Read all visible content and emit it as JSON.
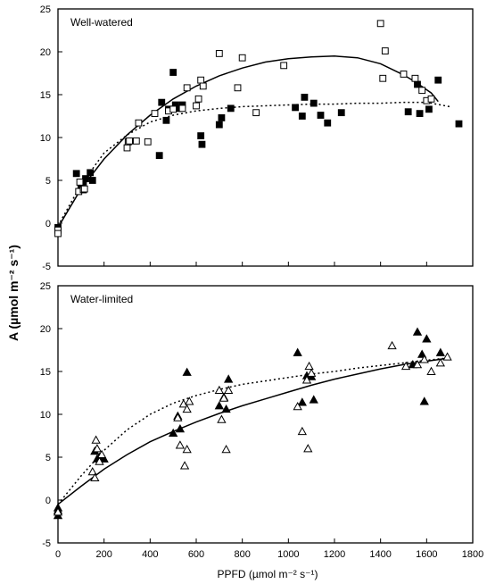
{
  "figure": {
    "ylabel": "A (µmol m⁻² s⁻¹)",
    "xlabel": "PPFD (µmol m⁻² s⁻¹)"
  },
  "chart_data": [
    {
      "type": "scatter",
      "title": "Well-watered",
      "xlim": [
        0,
        1800
      ],
      "ylim": [
        -5,
        25
      ],
      "x_ticks": [
        0,
        200,
        400,
        600,
        800,
        1000,
        1200,
        1400,
        1600,
        1800
      ],
      "x_tick_labels_shown": false,
      "y_ticks": [
        -5,
        0,
        5,
        10,
        15,
        20,
        25
      ],
      "grid": false,
      "series": [
        {
          "marker": "filled-square",
          "points": [
            [
              0,
              -0.5
            ],
            [
              80,
              5.8
            ],
            [
              100,
              4.2
            ],
            [
              110,
              4.8
            ],
            [
              120,
              5.2
            ],
            [
              140,
              5.9
            ],
            [
              150,
              5.0
            ],
            [
              440,
              7.9
            ],
            [
              450,
              14.1
            ],
            [
              470,
              12.0
            ],
            [
              480,
              13.3
            ],
            [
              500,
              17.6
            ],
            [
              510,
              13.8
            ],
            [
              520,
              13.4
            ],
            [
              540,
              13.8
            ],
            [
              620,
              10.2
            ],
            [
              625,
              9.2
            ],
            [
              700,
              11.5
            ],
            [
              710,
              12.3
            ],
            [
              750,
              13.4
            ],
            [
              1030,
              13.5
            ],
            [
              1060,
              12.5
            ],
            [
              1070,
              14.7
            ],
            [
              1110,
              14.0
            ],
            [
              1140,
              12.6
            ],
            [
              1170,
              11.7
            ],
            [
              1230,
              12.9
            ],
            [
              1520,
              13.0
            ],
            [
              1560,
              16.2
            ],
            [
              1570,
              12.8
            ],
            [
              1610,
              13.3
            ],
            [
              1650,
              16.7
            ],
            [
              1740,
              11.6
            ]
          ]
        },
        {
          "marker": "open-square",
          "points": [
            [
              0,
              -0.8
            ],
            [
              0,
              -1.2
            ],
            [
              90,
              3.7
            ],
            [
              95,
              4.8
            ],
            [
              110,
              3.9
            ],
            [
              115,
              4.0
            ],
            [
              300,
              8.8
            ],
            [
              305,
              9.5
            ],
            [
              310,
              9.6
            ],
            [
              340,
              9.6
            ],
            [
              350,
              11.7
            ],
            [
              390,
              9.5
            ],
            [
              420,
              12.8
            ],
            [
              480,
              13.1
            ],
            [
              500,
              13.3
            ],
            [
              540,
              13.4
            ],
            [
              560,
              15.8
            ],
            [
              600,
              13.7
            ],
            [
              610,
              14.5
            ],
            [
              620,
              16.7
            ],
            [
              630,
              16.0
            ],
            [
              700,
              19.8
            ],
            [
              780,
              15.8
            ],
            [
              800,
              19.3
            ],
            [
              860,
              12.9
            ],
            [
              980,
              18.4
            ],
            [
              1400,
              23.3
            ],
            [
              1410,
              16.9
            ],
            [
              1420,
              20.1
            ],
            [
              1500,
              17.4
            ],
            [
              1550,
              16.9
            ],
            [
              1580,
              15.5
            ],
            [
              1600,
              14.3
            ],
            [
              1620,
              14.5
            ]
          ]
        },
        {
          "line": "solid",
          "points": [
            [
              0,
              -0.5
            ],
            [
              100,
              4.0
            ],
            [
              200,
              7.5
            ],
            [
              300,
              10.3
            ],
            [
              400,
              12.6
            ],
            [
              500,
              14.5
            ],
            [
              600,
              16.0
            ],
            [
              700,
              17.2
            ],
            [
              800,
              18.1
            ],
            [
              900,
              18.8
            ],
            [
              1000,
              19.2
            ],
            [
              1100,
              19.4
            ],
            [
              1200,
              19.5
            ],
            [
              1300,
              19.3
            ],
            [
              1400,
              18.6
            ],
            [
              1500,
              17.3
            ],
            [
              1550,
              16.5
            ],
            [
              1620,
              15.2
            ],
            [
              1650,
              14.2
            ]
          ]
        },
        {
          "line": "dotted",
          "points": [
            [
              0,
              -0.3
            ],
            [
              100,
              4.5
            ],
            [
              200,
              8.2
            ],
            [
              300,
              10.3
            ],
            [
              400,
              11.8
            ],
            [
              500,
              12.6
            ],
            [
              600,
              13.1
            ],
            [
              700,
              13.4
            ],
            [
              800,
              13.6
            ],
            [
              900,
              13.7
            ],
            [
              1000,
              13.8
            ],
            [
              1100,
              13.9
            ],
            [
              1200,
              13.9
            ],
            [
              1300,
              14.0
            ],
            [
              1400,
              14.0
            ],
            [
              1500,
              14.1
            ],
            [
              1600,
              14.1
            ],
            [
              1700,
              13.6
            ]
          ]
        }
      ]
    },
    {
      "type": "scatter",
      "title": "Water-limited",
      "xlim": [
        0,
        1800
      ],
      "ylim": [
        -5,
        25
      ],
      "x_ticks": [
        0,
        200,
        400,
        600,
        800,
        1000,
        1200,
        1400,
        1600,
        1800
      ],
      "x_tick_labels": [
        "0",
        "200",
        "400",
        "600",
        "800",
        "1000",
        "1200",
        "1400",
        "1600",
        "1800"
      ],
      "y_ticks": [
        -5,
        0,
        5,
        10,
        15,
        20,
        25
      ],
      "grid": false,
      "series": [
        {
          "marker": "filled-triangle",
          "points": [
            [
              0,
              -1.2
            ],
            [
              0,
              -1.8
            ],
            [
              0,
              -0.9
            ],
            [
              160,
              5.7
            ],
            [
              170,
              4.8
            ],
            [
              180,
              5.0
            ],
            [
              200,
              4.8
            ],
            [
              500,
              7.8
            ],
            [
              520,
              9.8
            ],
            [
              530,
              8.3
            ],
            [
              560,
              14.9
            ],
            [
              700,
              11.0
            ],
            [
              720,
              12.0
            ],
            [
              730,
              10.6
            ],
            [
              740,
              14.1
            ],
            [
              1040,
              17.2
            ],
            [
              1060,
              11.4
            ],
            [
              1080,
              14.5
            ],
            [
              1100,
              14.4
            ],
            [
              1110,
              11.7
            ],
            [
              1540,
              15.8
            ],
            [
              1560,
              19.6
            ],
            [
              1580,
              17.0
            ],
            [
              1590,
              11.5
            ],
            [
              1600,
              18.8
            ],
            [
              1660,
              17.2
            ]
          ]
        },
        {
          "marker": "open-triangle",
          "points": [
            [
              0,
              -1.4
            ],
            [
              150,
              3.3
            ],
            [
              160,
              2.6
            ],
            [
              165,
              7.0
            ],
            [
              170,
              6.0
            ],
            [
              180,
              4.5
            ],
            [
              190,
              5.3
            ],
            [
              520,
              9.6
            ],
            [
              530,
              6.4
            ],
            [
              545,
              11.2
            ],
            [
              550,
              4.0
            ],
            [
              560,
              10.6
            ],
            [
              560,
              5.9
            ],
            [
              570,
              11.5
            ],
            [
              700,
              12.8
            ],
            [
              710,
              9.4
            ],
            [
              720,
              11.9
            ],
            [
              730,
              5.9
            ],
            [
              740,
              12.8
            ],
            [
              1040,
              10.9
            ],
            [
              1060,
              8.0
            ],
            [
              1080,
              14.0
            ],
            [
              1085,
              6.0
            ],
            [
              1090,
              15.6
            ],
            [
              1100,
              14.8
            ],
            [
              1450,
              18.0
            ],
            [
              1510,
              15.6
            ],
            [
              1560,
              15.8
            ],
            [
              1590,
              16.4
            ],
            [
              1620,
              15.0
            ],
            [
              1660,
              16.0
            ],
            [
              1690,
              16.7
            ]
          ]
        },
        {
          "line": "solid",
          "points": [
            [
              0,
              -0.5
            ],
            [
              100,
              1.6
            ],
            [
              200,
              3.6
            ],
            [
              300,
              5.3
            ],
            [
              400,
              6.8
            ],
            [
              500,
              8.0
            ],
            [
              600,
              9.1
            ],
            [
              700,
              10.1
            ],
            [
              800,
              11.0
            ],
            [
              900,
              11.8
            ],
            [
              1000,
              12.6
            ],
            [
              1100,
              13.4
            ],
            [
              1200,
              14.1
            ],
            [
              1300,
              14.7
            ],
            [
              1400,
              15.3
            ],
            [
              1500,
              15.8
            ],
            [
              1600,
              16.2
            ],
            [
              1680,
              16.5
            ]
          ]
        },
        {
          "line": "dotted",
          "points": [
            [
              0,
              -0.5
            ],
            [
              100,
              2.8
            ],
            [
              200,
              5.8
            ],
            [
              300,
              8.2
            ],
            [
              400,
              10.0
            ],
            [
              500,
              11.3
            ],
            [
              600,
              12.2
            ],
            [
              700,
              12.9
            ],
            [
              800,
              13.5
            ],
            [
              900,
              13.9
            ],
            [
              1000,
              14.3
            ],
            [
              1100,
              14.7
            ],
            [
              1200,
              15.0
            ],
            [
              1300,
              15.4
            ],
            [
              1400,
              15.7
            ],
            [
              1500,
              16.0
            ],
            [
              1600,
              16.3
            ],
            [
              1700,
              16.6
            ]
          ]
        }
      ]
    }
  ]
}
